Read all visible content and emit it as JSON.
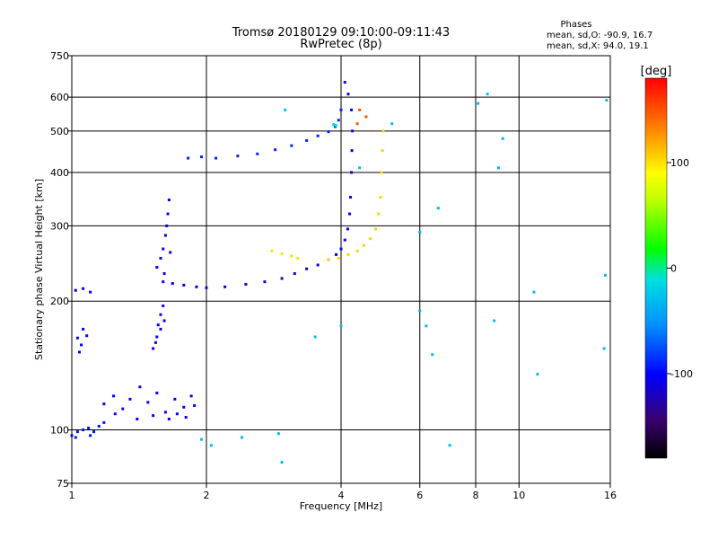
{
  "chart_data": {
    "type": "scatter",
    "title": "Tromsø 20180129 09:10:00-09:11:43",
    "subtitle": "RwPretec (8p)",
    "xlabel": "Frequency [MHz]",
    "ylabel": "Stationary phase Virtual Height [km]",
    "x_scale": "log",
    "y_scale": "log",
    "xlim": [
      1,
      16
    ],
    "ylim": [
      75,
      750
    ],
    "x_ticks": [
      1,
      2,
      4,
      6,
      8,
      10,
      16
    ],
    "x_tick_labels": [
      "1",
      "2",
      "4",
      "6",
      "8",
      "10",
      "16"
    ],
    "y_ticks": [
      75,
      100,
      200,
      300,
      400,
      500,
      600,
      750
    ],
    "y_tick_labels": [
      "75",
      "100",
      "200",
      "300",
      "400",
      "500",
      "600",
      "750"
    ],
    "grid": true,
    "colorbar": {
      "label": "[deg]",
      "range": [
        -180,
        180
      ],
      "ticks": [
        100,
        0,
        -100
      ],
      "tick_labels": [
        "100",
        "0",
        "-100"
      ]
    },
    "phases_box": {
      "title": "Phases",
      "line1": "mean, sd,O: -90.9, 16.7",
      "line2": "mean, sd,X:  94.0, 19.1"
    },
    "traces": [
      {
        "points": [
          [
            1.0,
            97
          ],
          [
            1.03,
            99
          ],
          [
            1.06,
            100
          ],
          [
            1.09,
            101
          ],
          [
            1.12,
            99
          ],
          [
            1.15,
            102
          ],
          [
            1.18,
            104
          ],
          [
            1.1,
            97
          ],
          [
            1.02,
            96
          ]
        ],
        "phase": -95
      },
      {
        "points": [
          [
            1.05,
            158
          ],
          [
            1.04,
            152
          ],
          [
            1.03,
            164
          ],
          [
            1.06,
            172
          ],
          [
            1.08,
            166
          ],
          [
            1.02,
            212
          ],
          [
            1.06,
            214
          ],
          [
            1.1,
            210
          ]
        ],
        "phase": -100
      },
      {
        "points": [
          [
            1.18,
            115
          ],
          [
            1.24,
            120
          ],
          [
            1.3,
            112
          ],
          [
            1.35,
            118
          ],
          [
            1.42,
            126
          ],
          [
            1.48,
            116
          ],
          [
            1.55,
            122
          ],
          [
            1.62,
            110
          ],
          [
            1.7,
            118
          ],
          [
            1.78,
            113
          ],
          [
            1.85,
            120
          ],
          [
            1.25,
            109
          ],
          [
            1.4,
            106
          ],
          [
            1.52,
            108
          ],
          [
            1.65,
            106
          ],
          [
            1.72,
            109
          ],
          [
            1.8,
            107
          ],
          [
            1.88,
            114
          ]
        ],
        "phase": -100
      },
      {
        "points": [
          [
            1.52,
            155
          ],
          [
            1.55,
            165
          ],
          [
            1.56,
            176
          ],
          [
            1.58,
            186
          ],
          [
            1.6,
            195
          ],
          [
            1.58,
            172
          ],
          [
            1.61,
            180
          ],
          [
            1.54,
            160
          ]
        ],
        "phase": -100
      },
      {
        "points": [
          [
            1.55,
            240
          ],
          [
            1.58,
            252
          ],
          [
            1.6,
            265
          ],
          [
            1.62,
            285
          ],
          [
            1.63,
            300
          ],
          [
            1.64,
            320
          ],
          [
            1.65,
            345
          ],
          [
            1.61,
            232
          ],
          [
            1.66,
            260
          ]
        ],
        "phase": -105
      },
      {
        "points": [
          [
            1.6,
            222
          ],
          [
            1.68,
            220
          ],
          [
            1.78,
            218
          ],
          [
            1.9,
            216
          ],
          [
            2.0,
            215
          ],
          [
            2.2,
            216
          ],
          [
            2.45,
            219
          ],
          [
            2.7,
            222
          ],
          [
            2.95,
            226
          ],
          [
            3.15,
            232
          ],
          [
            3.35,
            238
          ],
          [
            3.55,
            243
          ],
          [
            3.75,
            250
          ],
          [
            3.9,
            257
          ],
          [
            4.0,
            265
          ],
          [
            4.08,
            278
          ],
          [
            4.14,
            295
          ],
          [
            4.18,
            320
          ],
          [
            4.2,
            350
          ],
          [
            4.22,
            400
          ],
          [
            4.23,
            450
          ],
          [
            4.24,
            500
          ],
          [
            4.22,
            560
          ],
          [
            4.15,
            610
          ],
          [
            4.08,
            650
          ]
        ],
        "phase": -110
      },
      {
        "points": [
          [
            1.82,
            432
          ],
          [
            1.95,
            435
          ],
          [
            2.1,
            432
          ],
          [
            2.35,
            437
          ],
          [
            2.6,
            442
          ],
          [
            2.85,
            452
          ],
          [
            3.1,
            462
          ],
          [
            3.35,
            475
          ],
          [
            3.55,
            487
          ],
          [
            3.75,
            498
          ],
          [
            3.88,
            512
          ],
          [
            3.95,
            530
          ],
          [
            4.0,
            560
          ]
        ],
        "phase": -90
      },
      {
        "points": [
          [
            2.8,
            262
          ],
          [
            2.95,
            258
          ],
          [
            3.1,
            255
          ],
          [
            3.2,
            252
          ]
        ],
        "phase": 100
      },
      {
        "points": [
          [
            3.75,
            250
          ],
          [
            3.95,
            252
          ],
          [
            4.15,
            257
          ],
          [
            4.35,
            262
          ],
          [
            4.5,
            270
          ],
          [
            4.65,
            280
          ],
          [
            4.78,
            295
          ],
          [
            4.85,
            320
          ],
          [
            4.9,
            350
          ],
          [
            4.93,
            400
          ],
          [
            4.95,
            450
          ],
          [
            4.97,
            500
          ]
        ],
        "phase": 105
      },
      {
        "points": [
          [
            4.55,
            540
          ],
          [
            4.4,
            560
          ],
          [
            4.35,
            520
          ]
        ],
        "phase": 150
      },
      {
        "points": [
          [
            3.85,
            518
          ],
          [
            3.9,
            515
          ]
        ],
        "phase": -10
      },
      {
        "points": [
          [
            6.0,
            190
          ],
          [
            6.2,
            175
          ],
          [
            7.0,
            92
          ],
          [
            8.5,
            610
          ],
          [
            8.8,
            180
          ],
          [
            10.8,
            210
          ],
          [
            11.0,
            135
          ],
          [
            15.5,
            155
          ],
          [
            15.6,
            230
          ],
          [
            15.7,
            590
          ],
          [
            6.6,
            330
          ],
          [
            2.9,
            98
          ],
          [
            2.4,
            96
          ],
          [
            2.95,
            84
          ],
          [
            2.05,
            92
          ],
          [
            1.95,
            95
          ],
          [
            6.0,
            290
          ],
          [
            5.2,
            520
          ],
          [
            6.4,
            150
          ],
          [
            4.0,
            175
          ],
          [
            3.5,
            165
          ],
          [
            8.1,
            580
          ],
          [
            9.2,
            480
          ],
          [
            9.0,
            410
          ],
          [
            3.0,
            560
          ],
          [
            4.4,
            410
          ]
        ],
        "phase": -30
      }
    ]
  }
}
